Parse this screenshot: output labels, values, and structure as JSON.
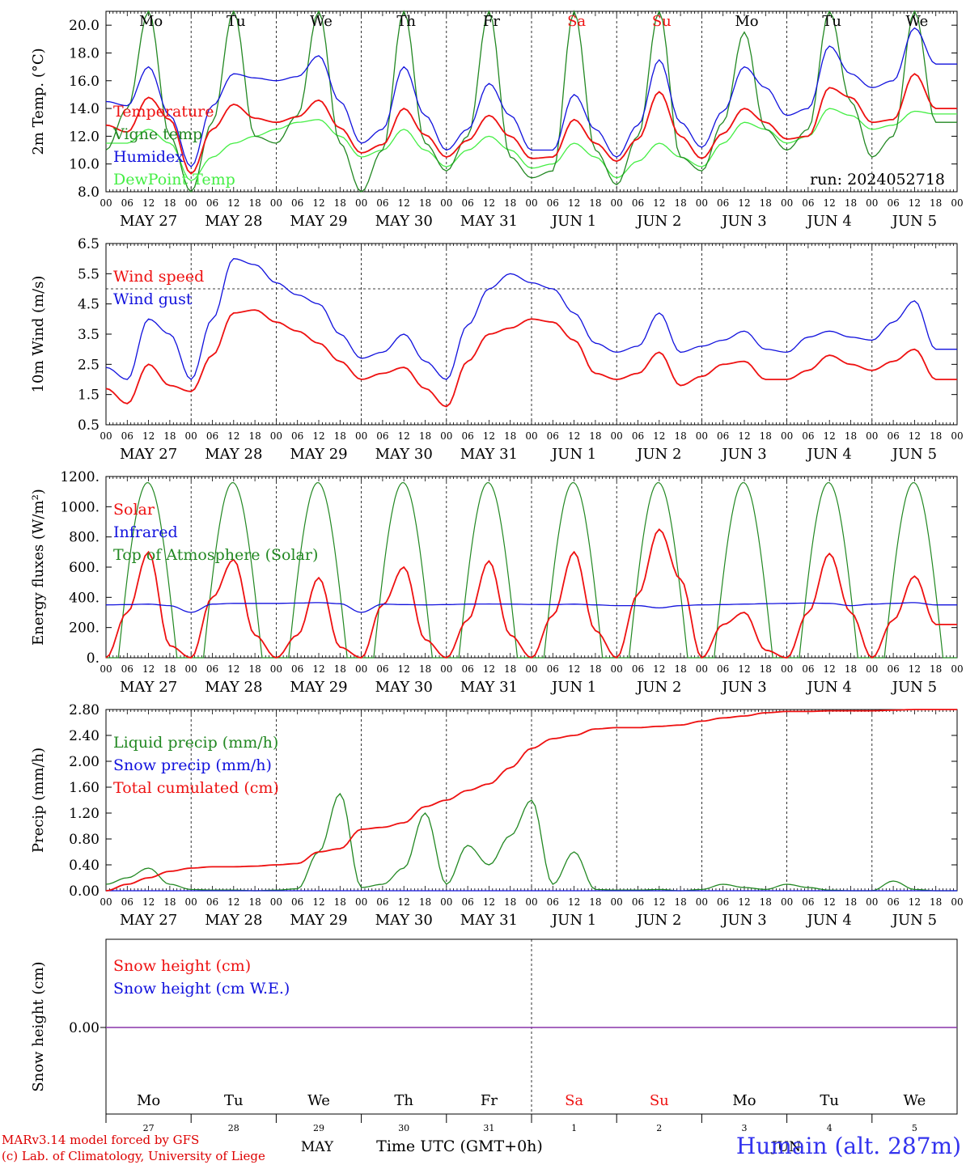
{
  "run_label": "run: 2024052718",
  "footer": {
    "credit_line_1": "MARv3.14 model forced by GFS",
    "credit_line_2": "(c) Lab. of Climatology, University of Liege",
    "station": "Humain (alt. 287m)",
    "month_label": "MAY",
    "month_label_2": "JUN",
    "time_axis_title": "Time UTC (GMT+0h)"
  },
  "colors": {
    "red": "#ee1111",
    "dark_green": "#228822",
    "blue": "#1111dd",
    "light_green": "#44ee44",
    "purple": "#8833aa"
  },
  "days": {
    "weekday": [
      "Mo",
      "Tu",
      "We",
      "Th",
      "Fr",
      "Sa",
      "Su",
      "Mo",
      "Tu",
      "We"
    ],
    "weekday_weekend": [
      false,
      false,
      false,
      false,
      false,
      true,
      true,
      false,
      false,
      false
    ],
    "date_label": [
      "MAY 27",
      "MAY 28",
      "MAY 29",
      "MAY 30",
      "MAY 31",
      "JUN  1",
      "JUN  2",
      "JUN  3",
      "JUN  4",
      "JUN  5"
    ],
    "day_number": [
      "27",
      "28",
      "29",
      "30",
      "31",
      "1",
      "2",
      "3",
      "4",
      "5"
    ],
    "hour_ticks": [
      "00",
      "06",
      "12",
      "18"
    ],
    "end_tick": "00"
  },
  "chart_data": [
    {
      "id": "temperature",
      "type": "line",
      "ylabel": "2m Temp. (°C)",
      "ylim": [
        8.0,
        21.0
      ],
      "yticks": [
        "8.0",
        "10.0",
        "12.0",
        "14.0",
        "16.0",
        "18.0",
        "20.0"
      ],
      "ytick_values": [
        8,
        10,
        12,
        14,
        16,
        18,
        20
      ],
      "x_unit": "hours since 2024-05-27 00 UTC",
      "x_step_hours": 6,
      "legend": [
        {
          "label": "Temperature",
          "color_key": "red"
        },
        {
          "label": "Vigne temp",
          "color_key": "dark_green"
        },
        {
          "label": "Humidex",
          "color_key": "blue"
        },
        {
          "label": "DewPoint Temp",
          "color_key": "light_green"
        }
      ],
      "series": [
        {
          "name": "Temperature",
          "color_key": "red",
          "values": [
            12.8,
            12.3,
            14.8,
            13.2,
            9.3,
            12.5,
            14.3,
            13.3,
            13.0,
            13.4,
            14.6,
            12.6,
            10.8,
            11.4,
            14.0,
            12.1,
            10.5,
            11.7,
            13.5,
            12.0,
            10.4,
            10.5,
            13.2,
            11.5,
            10.2,
            11.8,
            15.2,
            12.0,
            10.4,
            12.2,
            14.0,
            13.0,
            11.8,
            12.0,
            15.5,
            14.8,
            13.0,
            13.2,
            16.5,
            14.0
          ]
        },
        {
          "name": "Vigne temp",
          "color_key": "dark_green",
          "values": [
            11.0,
            14.0,
            21.0,
            12.0,
            8.0,
            13.0,
            21.0,
            12.0,
            11.5,
            13.5,
            21.0,
            11.5,
            8.0,
            11.0,
            21.0,
            11.5,
            9.5,
            12.0,
            21.0,
            10.5,
            9.0,
            9.5,
            21.0,
            11.0,
            8.5,
            12.0,
            21.0,
            10.5,
            9.5,
            13.0,
            19.5,
            12.5,
            11.0,
            12.5,
            21.0,
            14.5,
            10.5,
            12.0,
            21.0,
            13.0
          ]
        },
        {
          "name": "Humidex",
          "color_key": "blue",
          "values": [
            14.5,
            14.2,
            17.0,
            13.5,
            9.8,
            14.2,
            16.5,
            16.2,
            16.0,
            16.3,
            17.8,
            14.5,
            11.5,
            12.5,
            17.0,
            13.5,
            11.0,
            12.5,
            15.8,
            13.5,
            11.0,
            11.0,
            15.0,
            12.5,
            10.5,
            12.8,
            17.5,
            13.0,
            11.2,
            13.8,
            17.0,
            15.5,
            13.5,
            14.0,
            18.5,
            16.5,
            15.5,
            16.0,
            19.8,
            17.2
          ]
        },
        {
          "name": "DewPoint Temp",
          "color_key": "light_green",
          "values": [
            11.5,
            11.5,
            12.5,
            11.5,
            8.8,
            10.5,
            11.5,
            12.0,
            12.5,
            13.0,
            13.2,
            12.0,
            10.5,
            11.0,
            12.5,
            11.0,
            9.8,
            11.0,
            12.0,
            11.0,
            9.7,
            10.0,
            11.5,
            10.5,
            9.0,
            10.2,
            11.5,
            10.5,
            9.8,
            11.5,
            13.0,
            12.5,
            11.5,
            12.0,
            14.0,
            13.5,
            12.5,
            12.8,
            13.8,
            13.6
          ]
        }
      ]
    },
    {
      "id": "wind",
      "type": "line",
      "ylabel": "10m Wind (m/s)",
      "ylim": [
        0.5,
        6.5
      ],
      "yticks": [
        "0.5",
        "1.5",
        "2.5",
        "3.5",
        "4.5",
        "5.5",
        "6.5"
      ],
      "ytick_values": [
        0.5,
        1.5,
        2.5,
        3.5,
        4.5,
        5.5,
        6.5
      ],
      "reference_line": 5.0,
      "x_unit": "hours since 2024-05-27 00 UTC",
      "x_step_hours": 6,
      "legend": [
        {
          "label": "Wind speed",
          "color_key": "red"
        },
        {
          "label": "Wind gust",
          "color_key": "blue"
        }
      ],
      "series": [
        {
          "name": "Wind speed",
          "color_key": "red",
          "values": [
            1.7,
            1.2,
            2.5,
            1.8,
            1.6,
            2.8,
            4.2,
            4.3,
            3.9,
            3.6,
            3.2,
            2.6,
            2.0,
            2.2,
            2.4,
            1.7,
            1.1,
            2.6,
            3.5,
            3.7,
            4.0,
            3.9,
            3.3,
            2.2,
            2.0,
            2.2,
            2.9,
            1.8,
            2.1,
            2.5,
            2.6,
            2.0,
            2.0,
            2.3,
            2.8,
            2.5,
            2.3,
            2.6,
            3.0,
            2.0
          ]
        },
        {
          "name": "Wind gust",
          "color_key": "blue",
          "values": [
            2.4,
            2.0,
            4.0,
            3.5,
            2.0,
            4.0,
            6.0,
            5.8,
            5.2,
            4.8,
            4.5,
            3.5,
            2.7,
            2.9,
            3.5,
            2.6,
            2.0,
            3.8,
            5.0,
            5.5,
            5.2,
            5.0,
            4.2,
            3.2,
            2.9,
            3.1,
            4.2,
            2.9,
            3.1,
            3.3,
            3.6,
            3.0,
            2.9,
            3.4,
            3.6,
            3.4,
            3.3,
            3.9,
            4.6,
            3.0
          ]
        }
      ]
    },
    {
      "id": "energy",
      "type": "line",
      "ylabel": "Energy fluxes (W/m²)",
      "ylim": [
        0,
        1200
      ],
      "yticks": [
        "0.",
        "200.",
        "400.",
        "600.",
        "800.",
        "1000.",
        "1200."
      ],
      "ytick_values": [
        0,
        200,
        400,
        600,
        800,
        1000,
        1200
      ],
      "x_unit": "hours since 2024-05-27 00 UTC",
      "x_step_hours": 6,
      "legend": [
        {
          "label": "Solar",
          "color_key": "red"
        },
        {
          "label": "Infrared",
          "color_key": "blue"
        },
        {
          "label": "Top of Atmosphere (Solar)",
          "color_key": "dark_green"
        }
      ],
      "toa_daily_peak": 1160,
      "toa_sunrise_hour": 3.5,
      "toa_sunset_hour": 20.0,
      "series": [
        {
          "name": "Solar",
          "color_key": "red",
          "values": [
            0,
            300,
            700,
            80,
            0,
            400,
            650,
            150,
            0,
            150,
            530,
            70,
            0,
            350,
            600,
            120,
            0,
            250,
            640,
            150,
            0,
            280,
            700,
            180,
            0,
            420,
            850,
            520,
            0,
            220,
            300,
            50,
            0,
            300,
            690,
            300,
            0,
            250,
            540,
            220
          ]
        },
        {
          "name": "Infrared",
          "color_key": "blue",
          "values": [
            350,
            352,
            355,
            345,
            300,
            355,
            360,
            360,
            360,
            362,
            365,
            358,
            300,
            355,
            352,
            350,
            352,
            355,
            356,
            355,
            353,
            352,
            355,
            350,
            345,
            345,
            330,
            345,
            350,
            352,
            355,
            358,
            360,
            362,
            360,
            345,
            355,
            360,
            365,
            350
          ]
        }
      ]
    },
    {
      "id": "precip",
      "type": "line",
      "ylabel": "Precip (mm/h)",
      "ylim": [
        0,
        2.8
      ],
      "yticks": [
        "0.00",
        "0.40",
        "0.80",
        "1.20",
        "1.60",
        "2.00",
        "2.40",
        "2.80"
      ],
      "ytick_values": [
        0,
        0.4,
        0.8,
        1.2,
        1.6,
        2.0,
        2.4,
        2.8
      ],
      "x_unit": "hours since 2024-05-27 00 UTC",
      "x_step_hours": 6,
      "legend": [
        {
          "label": "Liquid precip (mm/h)",
          "color_key": "dark_green"
        },
        {
          "label": "Snow precip (mm/h)",
          "color_key": "blue"
        },
        {
          "label": "Total cumulated (cm)",
          "color_key": "red"
        }
      ],
      "series": [
        {
          "name": "Liquid precip (mm/h)",
          "color_key": "dark_green",
          "values": [
            0.1,
            0.2,
            0.35,
            0.1,
            0.02,
            0.01,
            0.01,
            0.0,
            0.01,
            0.03,
            0.6,
            1.5,
            0.05,
            0.1,
            0.35,
            1.2,
            0.1,
            0.7,
            0.4,
            0.85,
            1.4,
            0.1,
            0.6,
            0.02,
            0.01,
            0.01,
            0.02,
            0.0,
            0.02,
            0.1,
            0.05,
            0.02,
            0.1,
            0.05,
            0.01,
            0.0,
            0.0,
            0.15,
            0.02,
            0.0
          ]
        },
        {
          "name": "Snow precip (mm/h)",
          "color_key": "blue",
          "values": [
            0,
            0,
            0,
            0,
            0,
            0,
            0,
            0,
            0,
            0,
            0,
            0,
            0,
            0,
            0,
            0,
            0,
            0,
            0,
            0,
            0,
            0,
            0,
            0,
            0,
            0,
            0,
            0,
            0,
            0,
            0,
            0,
            0,
            0,
            0,
            0,
            0,
            0,
            0,
            0
          ]
        },
        {
          "name": "Total cumulated (cm)",
          "color_key": "red",
          "values": [
            0.0,
            0.1,
            0.2,
            0.3,
            0.35,
            0.37,
            0.37,
            0.38,
            0.4,
            0.42,
            0.6,
            0.65,
            0.95,
            0.98,
            1.05,
            1.3,
            1.4,
            1.55,
            1.65,
            1.9,
            2.2,
            2.35,
            2.4,
            2.5,
            2.52,
            2.52,
            2.54,
            2.56,
            2.62,
            2.67,
            2.7,
            2.75,
            2.77,
            2.77,
            2.78,
            2.78,
            2.78,
            2.79,
            2.8,
            2.8
          ]
        }
      ]
    },
    {
      "id": "snow",
      "type": "line",
      "ylabel": "Snow height (cm)",
      "yticks": [
        "0.00"
      ],
      "ytick_values": [
        0
      ],
      "x_unit": "hours since 2024-05-27 00 UTC",
      "x_step_hours": 6,
      "legend": [
        {
          "label": "Snow height (cm)",
          "color_key": "red"
        },
        {
          "label": "Snow height (cm W.E.)",
          "color_key": "blue"
        }
      ],
      "series": [
        {
          "name": "Snow height (cm)",
          "color_key": "purple",
          "values": [
            0,
            0
          ]
        },
        {
          "name": "Snow height (cm W.E.)",
          "color_key": "purple",
          "values": [
            0,
            0
          ]
        }
      ]
    }
  ]
}
